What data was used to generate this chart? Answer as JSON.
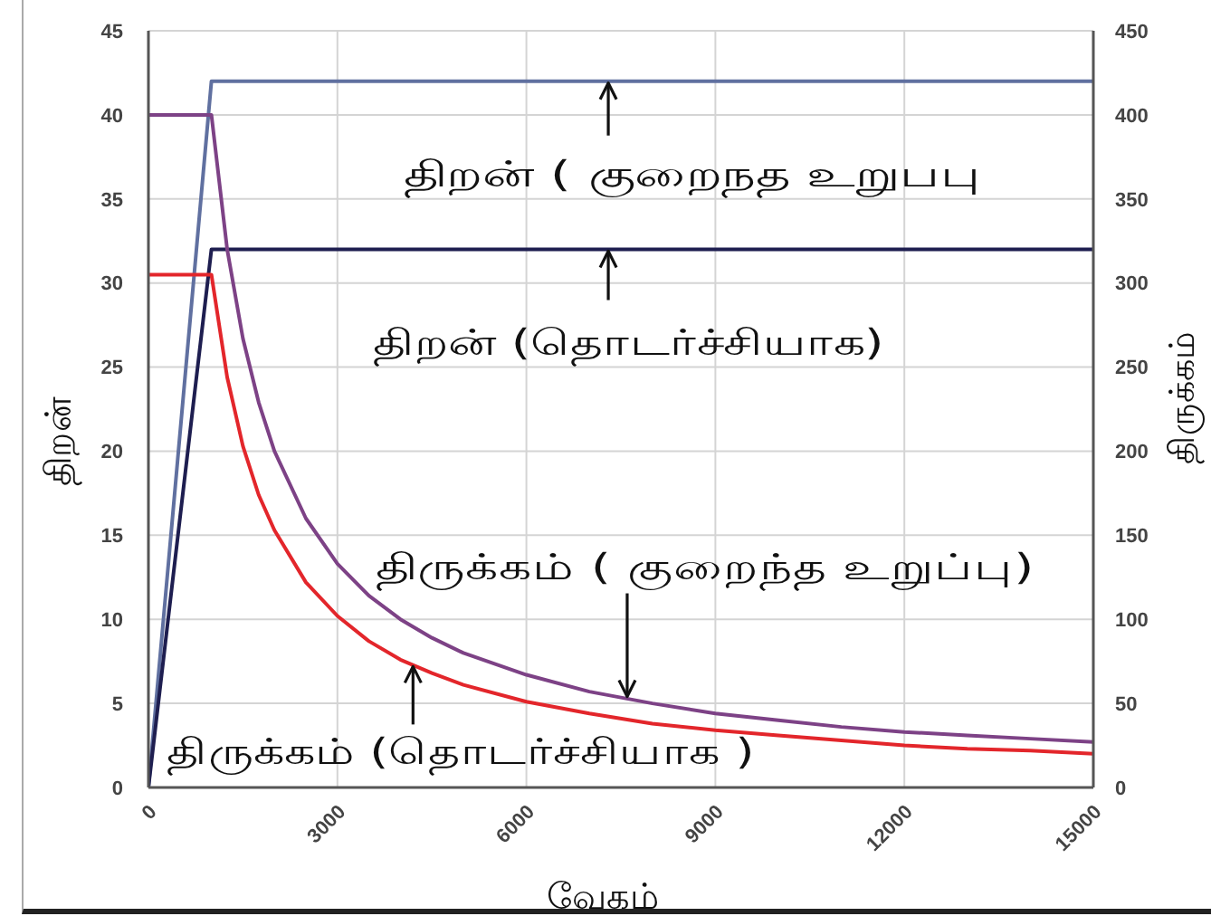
{
  "chart_data": {
    "type": "line",
    "xlabel": "வேகம்",
    "ylabel": "திறன்",
    "y2label": "திருக்கம்",
    "xlim": [
      0,
      15000
    ],
    "xticks": [
      0,
      3000,
      6000,
      9000,
      12000,
      15000
    ],
    "ylim": [
      0,
      45
    ],
    "yticks": [
      0,
      5,
      10,
      15,
      20,
      25,
      30,
      35,
      40,
      45
    ],
    "y2lim": [
      0,
      450
    ],
    "y2ticks": [
      0,
      50,
      100,
      150,
      200,
      250,
      300,
      350,
      400,
      450
    ],
    "grid": true,
    "marker": "none",
    "series": [
      {
        "color": "#6070a0",
        "x": [
          0,
          1000,
          15000
        ],
        "values": [
          0,
          42,
          42
        ]
      },
      {
        "color": "#1e1e50",
        "x": [
          0,
          1000,
          15000
        ],
        "values": [
          0,
          32,
          32
        ]
      },
      {
        "color": "#7d4286",
        "axis": "y2",
        "x": [
          0,
          1000,
          1250,
          1500,
          1750,
          2000,
          2500,
          3000,
          3500,
          4000,
          4500,
          5000,
          6000,
          7000,
          8000,
          9000,
          10000,
          11000,
          12000,
          13000,
          14000,
          15000
        ],
        "values": [
          400,
          400,
          320,
          267,
          229,
          200,
          160,
          133,
          114,
          100,
          89,
          80,
          67,
          57,
          50,
          44,
          40,
          36,
          33,
          31,
          29,
          27
        ]
      },
      {
        "color": "#e3262b",
        "axis": "y2",
        "x": [
          0,
          1000,
          1250,
          1500,
          1750,
          2000,
          2500,
          3000,
          3500,
          4000,
          4500,
          5000,
          6000,
          7000,
          8000,
          9000,
          10000,
          11000,
          12000,
          13000,
          14000,
          15000
        ],
        "values": [
          305,
          305,
          244,
          203,
          174,
          153,
          122,
          102,
          87,
          76,
          68,
          61,
          51,
          44,
          38,
          34,
          31,
          28,
          25,
          23,
          22,
          20
        ]
      }
    ],
    "annotations": [
      {
        "text": "திறன் ( குறைநத உறுபபு",
        "x": 7300,
        "y": 42
      },
      {
        "text": "திறன் (தொடர்ச்சியாக)",
        "x": 7300,
        "y": 32
      },
      {
        "text": "திருக்கம் ( குறைந்த உறுப்பு)",
        "x": 7600,
        "y": 5.3
      },
      {
        "text": "திருக்கம் (தொடர்ச்சியாக )",
        "x": 4200,
        "y": 7.3
      }
    ]
  }
}
